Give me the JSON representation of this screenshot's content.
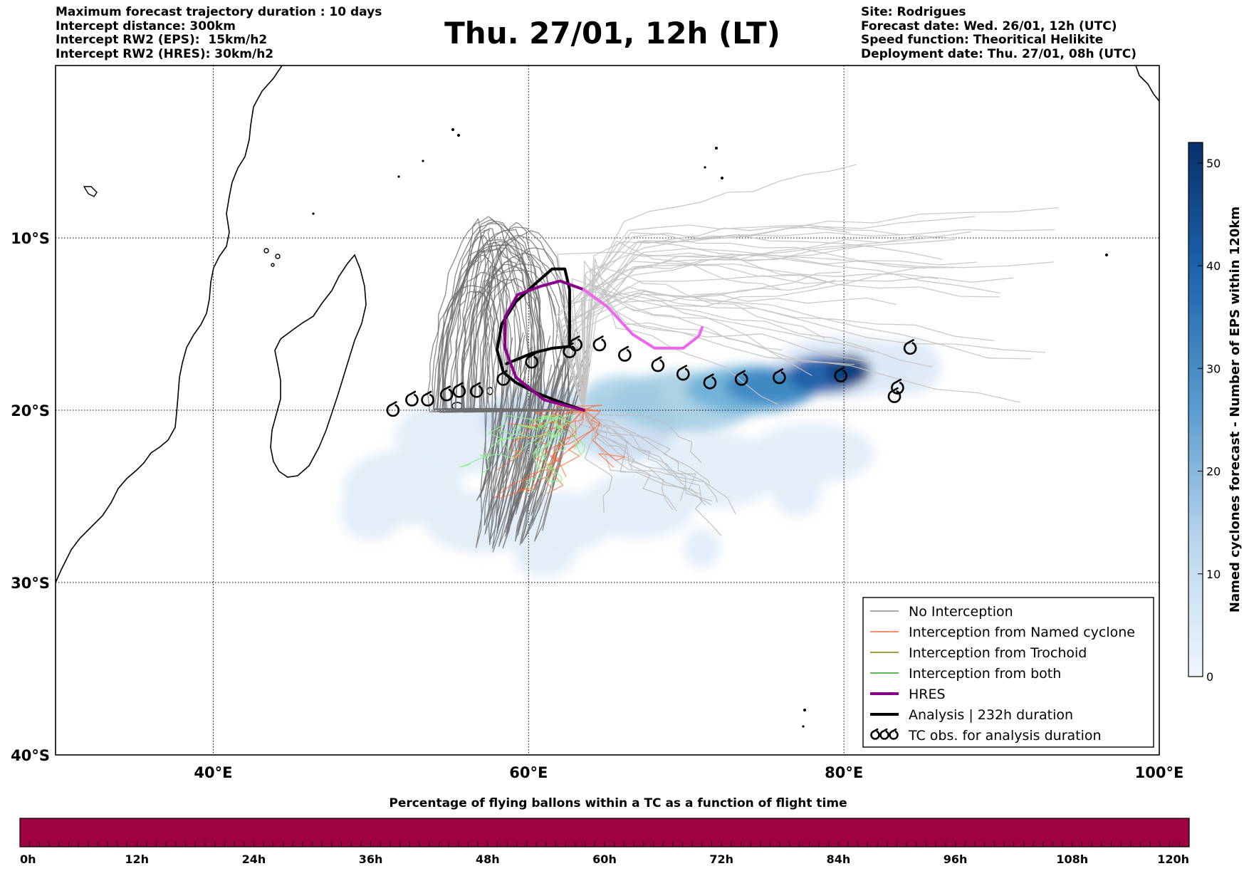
{
  "header_left": [
    "Maximum forecast trajectory duration : 10 days",
    "Intercept distance: 300km",
    "Intercept RW2 (EPS):  15km/h2",
    "Intercept RW2 (HRES): 30km/h2"
  ],
  "header_right": [
    "Site: Rodrigues",
    "Forecast date: Wed. 26/01, 12h (UTC)",
    "Speed function: Theoritical Helikite",
    "Deployment date: Thu. 27/01, 08h (UTC)"
  ],
  "title": "Thu. 27/01, 12h (LT)",
  "map": {
    "lon_range": [
      30,
      100
    ],
    "lat_range": [
      -40,
      0
    ],
    "lat_ticks": [
      {
        "lat": -10,
        "label": "10°S"
      },
      {
        "lat": -20,
        "label": "20°S"
      },
      {
        "lat": -30,
        "label": "30°S"
      },
      {
        "lat": -40,
        "label": "40°S"
      }
    ],
    "lon_ticks": [
      {
        "lon": 40,
        "label": "40°E"
      },
      {
        "lon": 60,
        "label": "60°E"
      },
      {
        "lon": 80,
        "label": "80°E"
      },
      {
        "lon": 100,
        "label": "100°E"
      }
    ],
    "grid": "dotted",
    "colors": {
      "no_interception": "#888888",
      "named_cyclone": "#ff6a33",
      "trochoid": "#808000",
      "both": "#1fa31f",
      "hres": "#8b008b",
      "hres_forecast": "#ee66ee",
      "analysis": "#000000",
      "density_light": "#deebf7",
      "density_dark": "#08306b"
    },
    "analysis_track": [
      [
        63.5,
        -20.0
      ],
      [
        62.2,
        -19.6
      ],
      [
        60.5,
        -19.0
      ],
      [
        59.2,
        -18.4
      ],
      [
        58.4,
        -17.8
      ],
      [
        58.0,
        -16.5
      ],
      [
        58.3,
        -15.0
      ],
      [
        59.2,
        -13.7
      ],
      [
        60.5,
        -12.6
      ],
      [
        61.5,
        -11.8
      ],
      [
        62.3,
        -11.8
      ],
      [
        62.6,
        -13.0
      ],
      [
        62.6,
        -16.3
      ],
      [
        61.5,
        -16.4
      ],
      [
        60.2,
        -16.7
      ],
      [
        58.6,
        -17.3
      ]
    ],
    "hres_track": [
      [
        63.5,
        -20.0
      ],
      [
        61.0,
        -19.4
      ],
      [
        59.2,
        -18.1
      ],
      [
        58.5,
        -16.4
      ],
      [
        58.5,
        -14.6
      ],
      [
        59.3,
        -13.3
      ],
      [
        60.8,
        -12.8
      ],
      [
        62.0,
        -12.5
      ],
      [
        63.5,
        -13.0
      ]
    ],
    "hres_forecast_track": [
      [
        63.5,
        -13.0
      ],
      [
        65.0,
        -14.0
      ],
      [
        66.6,
        -15.6
      ],
      [
        68.0,
        -16.4
      ],
      [
        69.8,
        -16.4
      ],
      [
        70.8,
        -15.7
      ],
      [
        71.0,
        -15.2
      ]
    ],
    "tc_obs": [
      [
        51.4,
        -20.0
      ],
      [
        52.6,
        -19.4
      ],
      [
        53.6,
        -19.4
      ],
      [
        54.8,
        -19.1
      ],
      [
        55.6,
        -18.9
      ],
      [
        56.7,
        -18.9
      ],
      [
        58.4,
        -18.2
      ],
      [
        60.2,
        -17.2
      ],
      [
        62.6,
        -16.6
      ],
      [
        63.0,
        -16.2
      ],
      [
        64.5,
        -16.2
      ],
      [
        66.1,
        -16.8
      ],
      [
        68.2,
        -17.4
      ],
      [
        69.8,
        -17.9
      ],
      [
        71.5,
        -18.4
      ],
      [
        73.5,
        -18.2
      ],
      [
        75.9,
        -18.1
      ],
      [
        79.8,
        -18.0
      ],
      [
        83.4,
        -18.7
      ],
      [
        83.2,
        -19.2
      ],
      [
        84.2,
        -16.4
      ]
    ]
  },
  "colorbar": {
    "title": "Named cyclones forecast - Number of EPS within 120km",
    "range": [
      0,
      52
    ],
    "ticks": [
      0,
      10,
      20,
      30,
      40,
      50
    ]
  },
  "legend": [
    {
      "label": "No Interception",
      "style": "no_interception"
    },
    {
      "label": "Interception from Named cyclone",
      "style": "named_cyclone"
    },
    {
      "label": "Interception from Trochoid",
      "style": "trochoid"
    },
    {
      "label": "Interception from both",
      "style": "both"
    },
    {
      "label": "HRES",
      "style": "hres"
    },
    {
      "label": "Analysis | 232h duration",
      "style": "analysis"
    },
    {
      "label": "TC obs. for analysis duration",
      "style": "tc_obs"
    }
  ],
  "timebar": {
    "title": "Percentage of flying ballons within a TC as a function of flight time",
    "color": "#9e0142",
    "labels": [
      "0h",
      "12h",
      "24h",
      "36h",
      "48h",
      "60h",
      "72h",
      "84h",
      "96h",
      "108h",
      "120h"
    ]
  }
}
